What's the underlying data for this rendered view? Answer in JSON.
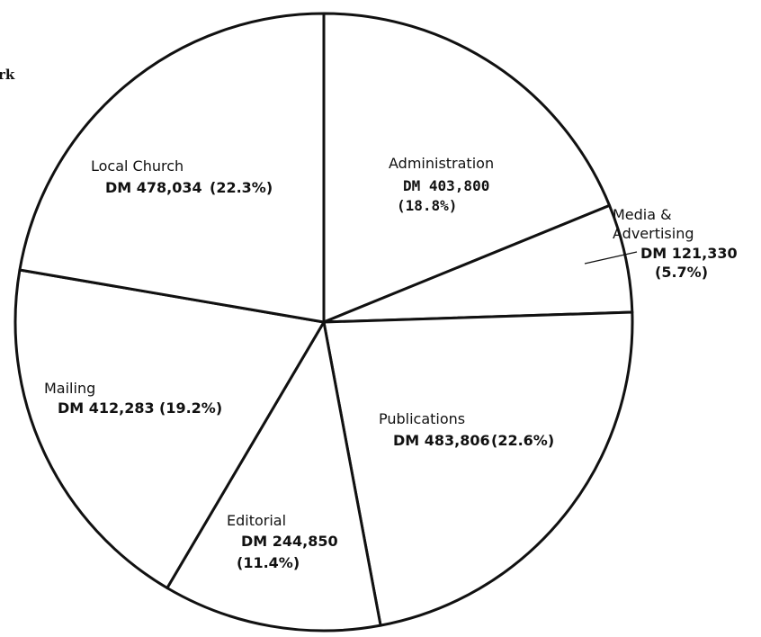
{
  "page_fragment": "rk",
  "chart_data": {
    "type": "pie",
    "title": "",
    "currency": "DM",
    "slices": [
      {
        "name": "Administration",
        "value": 403800,
        "percent": 18.8,
        "value_text": "DM 403,800",
        "percent_text": "(18.8%)"
      },
      {
        "name": "Media & Advertising",
        "value": 121330,
        "percent": 5.7,
        "value_text": "DM 121,330",
        "percent_text": "(5.7%)"
      },
      {
        "name": "Publications",
        "value": 483806,
        "percent": 22.6,
        "value_text": "DM 483,806",
        "percent_text": "(22.6%)"
      },
      {
        "name": "Editorial",
        "value": 244850,
        "percent": 11.4,
        "value_text": "DM 244,850",
        "percent_text": "(11.4%)"
      },
      {
        "name": "Mailing",
        "value": 412283,
        "percent": 19.2,
        "value_text": "DM 412,283",
        "percent_text": "(19.2%)"
      },
      {
        "name": "Local Church",
        "value": 478034,
        "percent": 22.3,
        "value_text": "DM 478,034",
        "percent_text": "(22.3%)"
      }
    ],
    "colors": {
      "fill": "#ffffff",
      "stroke": "#111111"
    }
  }
}
